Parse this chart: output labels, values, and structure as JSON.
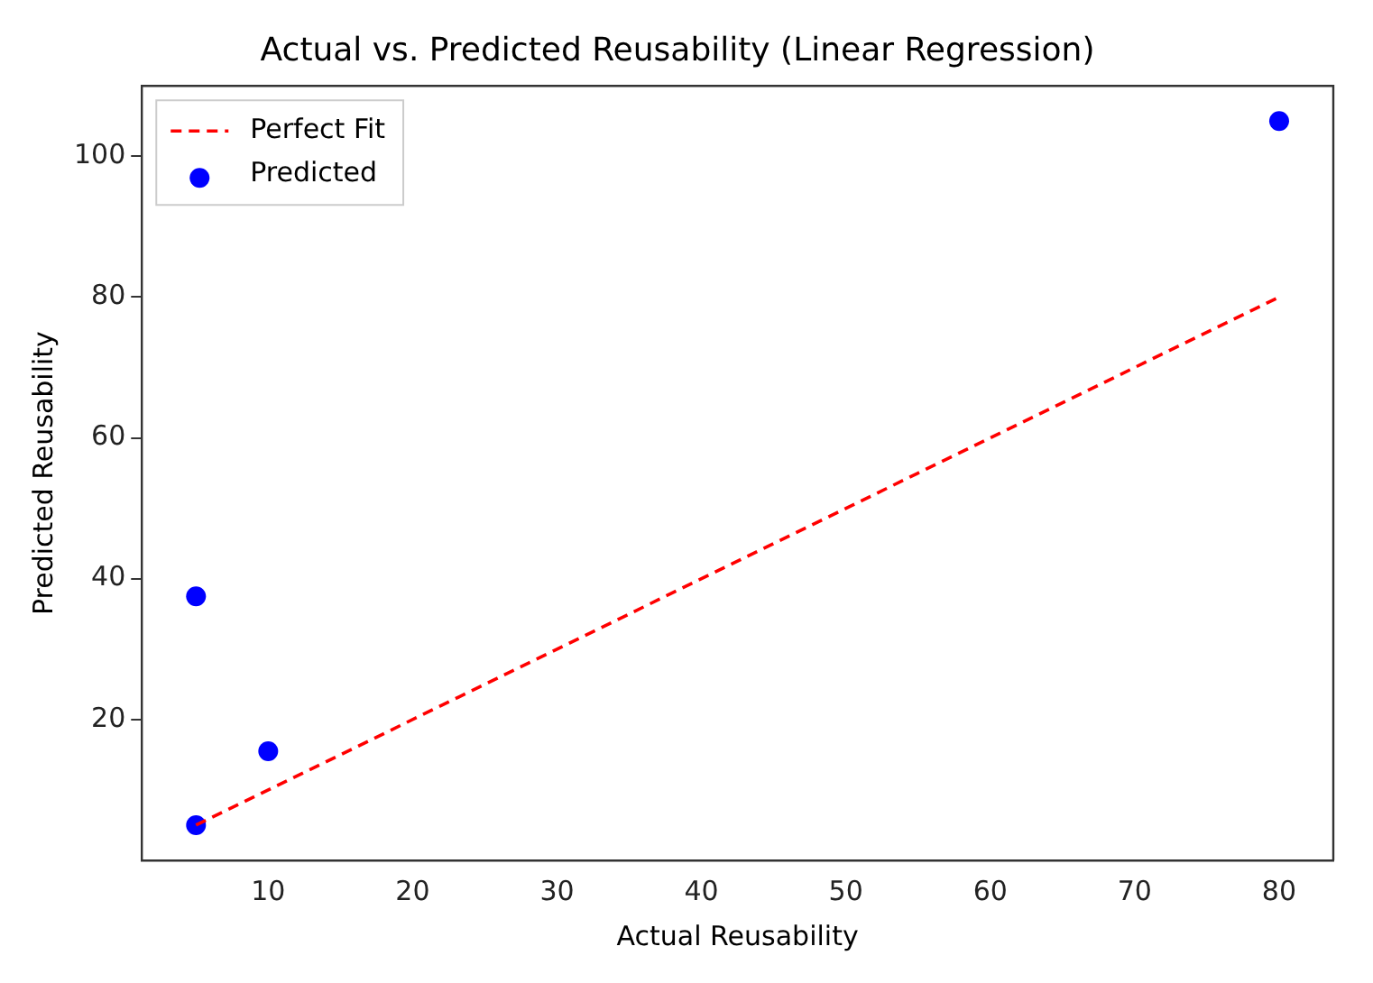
{
  "chart_data": {
    "type": "scatter",
    "title": "Actual vs. Predicted Reusability (Linear Regression)",
    "xlabel": "Actual Reusability",
    "ylabel": "Predicted Reusability",
    "series": [
      {
        "name": "Perfect Fit",
        "type": "line",
        "color": "#ff0000",
        "line_style": "dashed",
        "marker": "none",
        "x": [
          5,
          80
        ],
        "values": [
          5,
          80
        ]
      },
      {
        "name": "Predicted",
        "type": "scatter",
        "color": "#0000ff",
        "marker": "circle",
        "x": [
          5,
          5,
          10,
          80
        ],
        "values": [
          5,
          37.5,
          15.5,
          105
        ]
      }
    ],
    "xlim": [
      1.25,
      83.75
    ],
    "xticks": [
      10,
      20,
      30,
      40,
      50,
      60,
      70,
      80
    ],
    "ylim": [
      0,
      110
    ],
    "yticks": [
      20,
      40,
      60,
      80,
      100
    ],
    "grid": false,
    "legend": "top left"
  }
}
